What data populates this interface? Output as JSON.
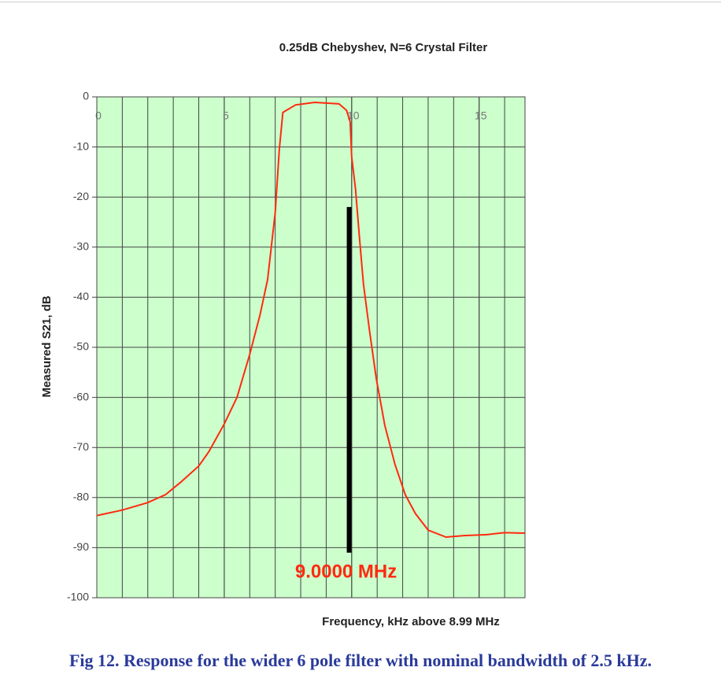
{
  "chart_data": {
    "type": "line",
    "title": "0.25dB Chebyshev, N=6 Crystal Filter",
    "x_label": "Frequency, kHz above 8.99 MHz",
    "y_label": "Measured S21, dB",
    "xlim": [
      0,
      16.8
    ],
    "xticks": [
      0,
      5,
      10,
      15
    ],
    "xgrid_step": 1,
    "ylim": [
      -100,
      0
    ],
    "yticks": [
      0,
      -10,
      -20,
      -30,
      -40,
      -50,
      -60,
      -70,
      -80,
      -90,
      -100
    ],
    "grid": true,
    "background": "#ccffcc",
    "series": [
      {
        "color": "#ff2a10",
        "x": [
          0,
          1,
          2,
          2.7,
          3.3,
          4,
          4.4,
          5,
          5.5,
          6,
          6.4,
          6.7,
          7,
          7.16,
          7.3,
          7.8,
          8.55,
          9.5,
          9.8,
          9.94,
          10,
          10.15,
          10.3,
          10.46,
          10.7,
          10.96,
          11.3,
          11.7,
          12.1,
          12.5,
          13,
          13.7,
          14.4,
          15.3,
          16,
          16.8
        ],
        "values": [
          -83.6,
          -82.5,
          -81,
          -79.4,
          -76.9,
          -73.7,
          -70.8,
          -65.3,
          -60,
          -51.4,
          -43.6,
          -36.5,
          -23.1,
          -10.5,
          -3.1,
          -1.6,
          -1.1,
          -1.4,
          -2.7,
          -5,
          -12,
          -18.4,
          -27.8,
          -37.3,
          -46.7,
          -56.1,
          -65.6,
          -73.4,
          -79.4,
          -83.2,
          -86.5,
          -87.9,
          -87.6,
          -87.4,
          -87,
          -87.1
        ]
      }
    ],
    "marker": {
      "x": 9.9,
      "top": -22,
      "bottom": -91,
      "color": "#000000",
      "label": "9.0000 MHz",
      "label_color": "#ff2a10"
    }
  },
  "caption": "Fig 12.  Response for the wider 6 pole filter with nominal bandwidth of 2.5 kHz."
}
